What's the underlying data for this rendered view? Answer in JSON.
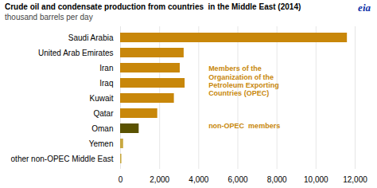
{
  "chart_data": {
    "type": "bar",
    "orientation": "horizontal",
    "title": "Crude oil and condensate production from countries  in the Middle East (2014)",
    "subtitle": "thousand barrels per day",
    "categories": [
      "other non-OPEC Middle East",
      "Yemen",
      "Oman",
      "Qatar",
      "Kuwait",
      "Iraq",
      "Iran",
      "United Arab Emirates",
      "Saudi Arabia"
    ],
    "values": [
      65,
      155,
      950,
      1900,
      2750,
      3300,
      3050,
      3250,
      11600
    ],
    "colors": [
      "#c8a840",
      "#c8a840",
      "#5a5200",
      "#c8870a",
      "#c8870a",
      "#c8870a",
      "#c8870a",
      "#c8870a",
      "#c8870a"
    ],
    "xlim": [
      0,
      12000
    ],
    "xticks": [
      0,
      {
        "value": 2000,
        "label": "2,000"
      },
      {
        "value": 4000,
        "label": "4,000"
      },
      {
        "value": 6000,
        "label": "6,000"
      },
      {
        "value": 8000,
        "label": "8,000"
      },
      {
        "value": 10000,
        "label": "10,000"
      },
      {
        "value": 12000,
        "label": "12,000"
      }
    ],
    "grid": true,
    "annotations": [
      {
        "text": "Members of the\nOrganization of the\nPetroleum Exporting\nCountries (OPEC)",
        "color": "#c8870a"
      },
      {
        "text": "non-OPEC  members",
        "color": "#c8870a"
      },
      {
        "text": "eia",
        "color": "#1133aa"
      }
    ]
  }
}
